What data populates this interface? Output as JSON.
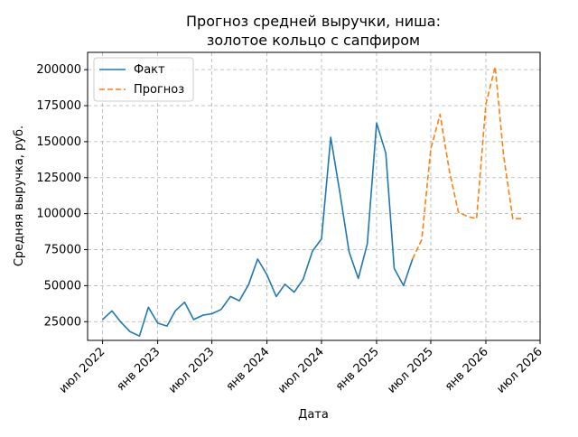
{
  "chart_data": {
    "type": "line",
    "title_line1": "Прогноз средней выручки, ниша:",
    "title_line2": "золотое кольцо с сапфиром",
    "xlabel": "Дата",
    "ylabel": "Средняя выручка, руб.",
    "x_range": [
      "2022-05-12",
      "2026-07-01"
    ],
    "ylim": [
      12000,
      212000
    ],
    "y_ticks": [
      25000,
      50000,
      75000,
      100000,
      125000,
      150000,
      175000,
      200000
    ],
    "x_ticks": [
      {
        "date": "2022-07-01",
        "label": "июл 2022"
      },
      {
        "date": "2023-01-01",
        "label": "янв 2023"
      },
      {
        "date": "2023-07-01",
        "label": "июл 2023"
      },
      {
        "date": "2024-01-01",
        "label": "янв 2024"
      },
      {
        "date": "2024-07-01",
        "label": "июл 2024"
      },
      {
        "date": "2025-01-01",
        "label": "янв 2025"
      },
      {
        "date": "2025-07-01",
        "label": "июл 2025"
      },
      {
        "date": "2026-01-01",
        "label": "янв 2026"
      },
      {
        "date": "2026-07-01",
        "label": "июл 2026"
      }
    ],
    "grid": true,
    "legend_position": "top-left",
    "series": [
      {
        "name": "Факт",
        "color": "#1f77b4",
        "style": "solid",
        "points": [
          [
            "2022-07-01",
            26500
          ],
          [
            "2022-08-01",
            32500
          ],
          [
            "2022-09-01",
            24500
          ],
          [
            "2022-10-01",
            18000
          ],
          [
            "2022-11-01",
            15000
          ],
          [
            "2022-12-01",
            35000
          ],
          [
            "2023-01-01",
            24000
          ],
          [
            "2023-02-01",
            22000
          ],
          [
            "2023-03-01",
            32500
          ],
          [
            "2023-04-01",
            38500
          ],
          [
            "2023-05-01",
            26500
          ],
          [
            "2023-06-01",
            29500
          ],
          [
            "2023-07-01",
            30500
          ],
          [
            "2023-08-01",
            33500
          ],
          [
            "2023-09-01",
            42500
          ],
          [
            "2023-10-01",
            39500
          ],
          [
            "2023-11-01",
            51000
          ],
          [
            "2023-12-01",
            68500
          ],
          [
            "2024-01-01",
            57500
          ],
          [
            "2024-02-01",
            42500
          ],
          [
            "2024-03-01",
            51000
          ],
          [
            "2024-04-01",
            45500
          ],
          [
            "2024-05-01",
            54500
          ],
          [
            "2024-06-01",
            74000
          ],
          [
            "2024-07-01",
            82500
          ],
          [
            "2024-08-01",
            153000
          ],
          [
            "2024-09-01",
            114000
          ],
          [
            "2024-10-01",
            73500
          ],
          [
            "2024-11-01",
            55000
          ],
          [
            "2024-12-01",
            79000
          ],
          [
            "2025-01-01",
            163000
          ],
          [
            "2025-02-01",
            142000
          ],
          [
            "2025-03-01",
            62000
          ],
          [
            "2025-04-01",
            50000
          ],
          [
            "2025-05-01",
            68500
          ]
        ]
      },
      {
        "name": "Прогноз",
        "color": "#ff7f0e",
        "style": "dashed",
        "points": [
          [
            "2025-05-01",
            68500
          ],
          [
            "2025-06-01",
            82000
          ],
          [
            "2025-07-01",
            145000
          ],
          [
            "2025-08-01",
            169000
          ],
          [
            "2025-09-01",
            130000
          ],
          [
            "2025-10-01",
            101000
          ],
          [
            "2025-11-01",
            98000
          ],
          [
            "2025-12-01",
            96500
          ],
          [
            "2026-01-01",
            176000
          ],
          [
            "2026-02-01",
            202000
          ],
          [
            "2026-03-01",
            141000
          ],
          [
            "2026-04-01",
            96500
          ],
          [
            "2026-05-01",
            96500
          ]
        ]
      }
    ]
  }
}
